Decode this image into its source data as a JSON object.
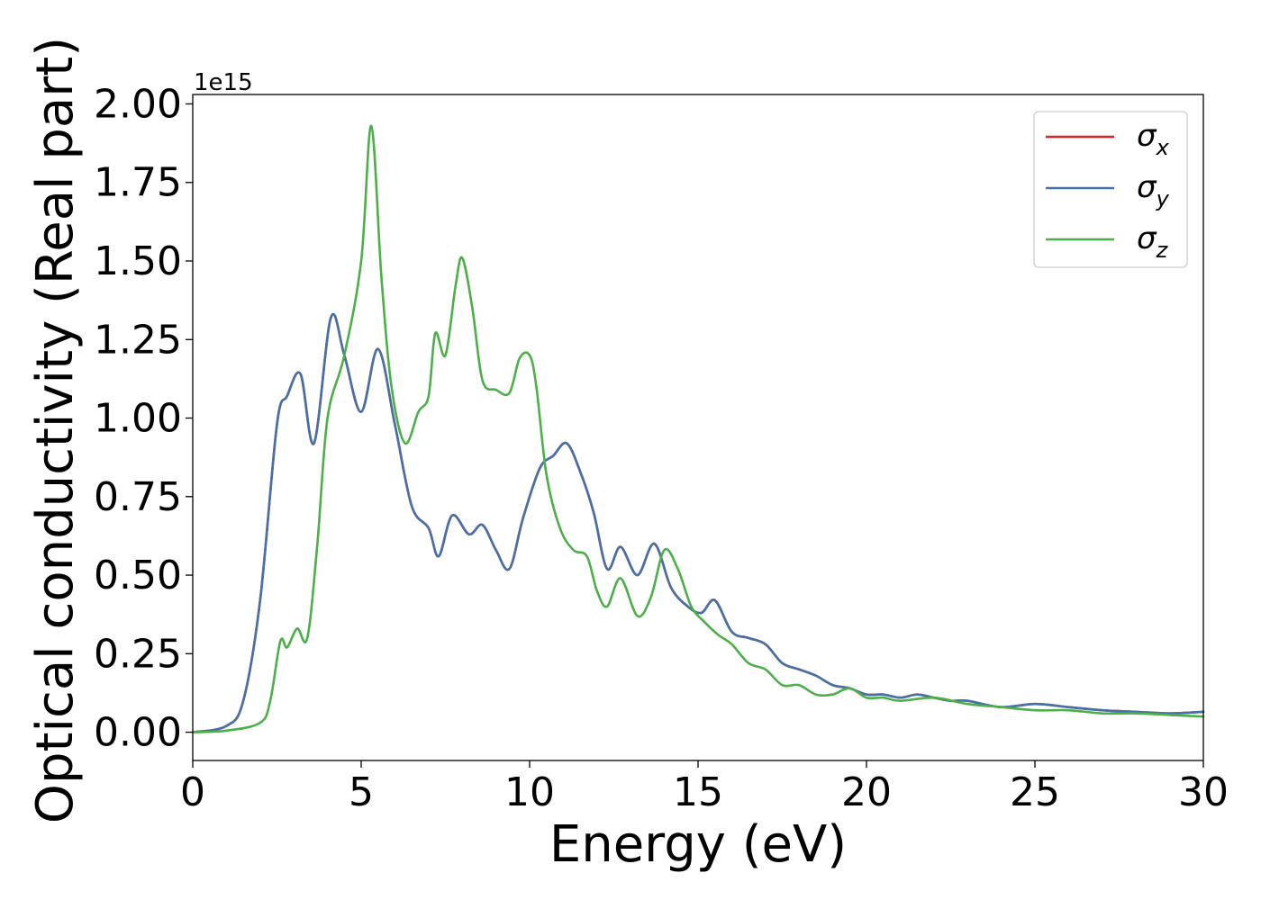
{
  "chart_data": {
    "type": "line",
    "title": "",
    "xlabel": "Energy (eV)",
    "ylabel": "Optical conductivity (Real part)",
    "y_offset_label": "1e15",
    "y_scale": 1000000000000000.0,
    "xlim": [
      0,
      30
    ],
    "ylim": [
      -0.09,
      2.03
    ],
    "x_ticks": [
      0,
      5,
      10,
      15,
      20,
      25,
      30
    ],
    "y_ticks": [
      0.0,
      0.25,
      0.5,
      0.75,
      1.0,
      1.25,
      1.5,
      1.75,
      2.0
    ],
    "x_tick_labels": [
      "0",
      "5",
      "10",
      "15",
      "20",
      "25",
      "30"
    ],
    "y_tick_labels": [
      "0.00",
      "0.25",
      "0.50",
      "0.75",
      "1.00",
      "1.25",
      "1.50",
      "1.75",
      "2.00"
    ],
    "grid": false,
    "legend_position": "top-right",
    "series": [
      {
        "name": "σx",
        "symbol": "σ",
        "subscript": "x",
        "color": "#d62728",
        "hidden_behind": "σy",
        "x": [
          0,
          1,
          1.5,
          2,
          2.5,
          2.8,
          3.2,
          3.6,
          4.1,
          4.5,
          5.0,
          5.5,
          6.0,
          6.5,
          7.0,
          7.3,
          7.7,
          8.2,
          8.6,
          9.0,
          9.4,
          9.8,
          10.3,
          10.7,
          11.1,
          11.5,
          11.9,
          12.3,
          12.7,
          13.2,
          13.7,
          14.2,
          14.7,
          15.1,
          15.5,
          16.0,
          16.5,
          17.0,
          17.5,
          18.0,
          18.5,
          19.0,
          19.5,
          20.0,
          20.5,
          21.0,
          21.5,
          22.0,
          22.5,
          23.0,
          24.0,
          25.0,
          26.0,
          27.0,
          28.0,
          29.0,
          30.0
        ],
        "y": [
          0.0,
          0.02,
          0.1,
          0.42,
          0.98,
          1.07,
          1.14,
          0.92,
          1.32,
          1.2,
          1.02,
          1.22,
          0.98,
          0.72,
          0.65,
          0.56,
          0.69,
          0.63,
          0.66,
          0.58,
          0.52,
          0.68,
          0.84,
          0.88,
          0.92,
          0.83,
          0.7,
          0.52,
          0.59,
          0.5,
          0.6,
          0.46,
          0.4,
          0.38,
          0.42,
          0.32,
          0.3,
          0.28,
          0.22,
          0.2,
          0.18,
          0.15,
          0.14,
          0.12,
          0.12,
          0.11,
          0.12,
          0.11,
          0.1,
          0.1,
          0.08,
          0.09,
          0.08,
          0.07,
          0.065,
          0.06,
          0.065
        ]
      },
      {
        "name": "σy",
        "symbol": "σ",
        "subscript": "y",
        "color": "#4472a8",
        "x": [
          0,
          1,
          1.5,
          2,
          2.5,
          2.8,
          3.2,
          3.6,
          4.1,
          4.5,
          5.0,
          5.5,
          6.0,
          6.5,
          7.0,
          7.3,
          7.7,
          8.2,
          8.6,
          9.0,
          9.4,
          9.8,
          10.3,
          10.7,
          11.1,
          11.5,
          11.9,
          12.3,
          12.7,
          13.2,
          13.7,
          14.2,
          14.7,
          15.1,
          15.5,
          16.0,
          16.5,
          17.0,
          17.5,
          18.0,
          18.5,
          19.0,
          19.5,
          20.0,
          20.5,
          21.0,
          21.5,
          22.0,
          22.5,
          23.0,
          24.0,
          25.0,
          26.0,
          27.0,
          28.0,
          29.0,
          30.0
        ],
        "y": [
          0.0,
          0.02,
          0.1,
          0.42,
          0.98,
          1.07,
          1.14,
          0.92,
          1.32,
          1.2,
          1.02,
          1.22,
          0.98,
          0.72,
          0.65,
          0.56,
          0.69,
          0.63,
          0.66,
          0.58,
          0.52,
          0.68,
          0.84,
          0.88,
          0.92,
          0.83,
          0.7,
          0.52,
          0.59,
          0.5,
          0.6,
          0.46,
          0.4,
          0.38,
          0.42,
          0.32,
          0.3,
          0.28,
          0.22,
          0.2,
          0.18,
          0.15,
          0.14,
          0.12,
          0.12,
          0.11,
          0.12,
          0.11,
          0.1,
          0.1,
          0.08,
          0.09,
          0.08,
          0.07,
          0.065,
          0.06,
          0.065
        ]
      },
      {
        "name": "σz",
        "symbol": "σ",
        "subscript": "z",
        "color": "#4daf4a",
        "x": [
          0,
          1,
          2,
          2.3,
          2.6,
          2.8,
          3.1,
          3.4,
          3.7,
          4.0,
          4.5,
          5.0,
          5.3,
          5.6,
          5.9,
          6.3,
          6.7,
          7.0,
          7.2,
          7.5,
          7.8,
          8.0,
          8.3,
          8.6,
          9.0,
          9.4,
          9.7,
          10.0,
          10.2,
          10.5,
          10.9,
          11.3,
          11.7,
          12.0,
          12.3,
          12.7,
          13.2,
          13.6,
          14.0,
          14.4,
          14.8,
          15.2,
          15.6,
          16.0,
          16.5,
          17.0,
          17.5,
          18.0,
          18.5,
          19.0,
          19.5,
          20.0,
          20.5,
          21.0,
          22.0,
          23.0,
          24.0,
          25.0,
          26.0,
          27.0,
          28.0,
          29.0,
          30.0
        ],
        "y": [
          0.0,
          0.005,
          0.03,
          0.1,
          0.29,
          0.27,
          0.33,
          0.3,
          0.6,
          1.0,
          1.2,
          1.5,
          1.93,
          1.45,
          1.1,
          0.92,
          1.02,
          1.07,
          1.27,
          1.2,
          1.42,
          1.51,
          1.35,
          1.12,
          1.09,
          1.08,
          1.19,
          1.2,
          1.1,
          0.82,
          0.65,
          0.58,
          0.56,
          0.45,
          0.4,
          0.49,
          0.37,
          0.43,
          0.58,
          0.52,
          0.4,
          0.35,
          0.31,
          0.28,
          0.22,
          0.2,
          0.15,
          0.15,
          0.12,
          0.12,
          0.14,
          0.11,
          0.11,
          0.1,
          0.11,
          0.09,
          0.08,
          0.07,
          0.07,
          0.06,
          0.06,
          0.055,
          0.05
        ]
      }
    ]
  }
}
